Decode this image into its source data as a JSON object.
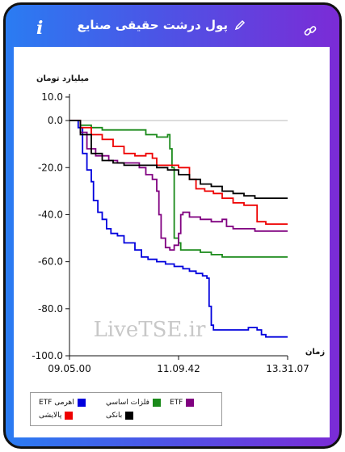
{
  "header": {
    "title": "پول درشت حقیقی صنایع",
    "info_label": "i",
    "colors": {
      "gradient_start": "#2a7cf2",
      "gradient_end": "#7b2bd6"
    }
  },
  "chart_data": {
    "type": "line",
    "ylabel": "میلیارد تومان",
    "xlabel": "زمان",
    "ylim": [
      -100,
      10
    ],
    "yticks": [
      "10.0",
      "0.0",
      "-20.0",
      "-40.0",
      "-60.0",
      "-80.0",
      "-100.0"
    ],
    "xticks": [
      "09.05.00",
      "11.09.42",
      "13.31.07"
    ],
    "watermark": "LiveTSE.ir",
    "series": [
      {
        "name": "اهرمی ETF",
        "color": "#0000dd",
        "points": [
          [
            0,
            0
          ],
          [
            4,
            -3
          ],
          [
            6,
            -14
          ],
          [
            8,
            -21
          ],
          [
            10,
            -26
          ],
          [
            11,
            -34
          ],
          [
            13,
            -39
          ],
          [
            15,
            -42
          ],
          [
            17,
            -46
          ],
          [
            19,
            -48
          ],
          [
            22,
            -49
          ],
          [
            25,
            -52
          ],
          [
            27,
            -52
          ],
          [
            30,
            -55
          ],
          [
            33,
            -58
          ],
          [
            36,
            -59
          ],
          [
            40,
            -60
          ],
          [
            44,
            -61
          ],
          [
            48,
            -62
          ],
          [
            52,
            -63
          ],
          [
            55,
            -64
          ],
          [
            58,
            -65
          ],
          [
            61,
            -66
          ],
          [
            63,
            -67
          ],
          [
            64,
            -79
          ],
          [
            65,
            -87
          ],
          [
            66,
            -89
          ],
          [
            74,
            -89
          ],
          [
            80,
            -89
          ],
          [
            82,
            -88
          ],
          [
            86,
            -89
          ],
          [
            88,
            -91
          ],
          [
            90,
            -92
          ],
          [
            100,
            -92
          ]
        ]
      },
      {
        "name": "فلزات اساسي",
        "color": "#1a8a1a",
        "points": [
          [
            0,
            0
          ],
          [
            5,
            -2
          ],
          [
            10,
            -3
          ],
          [
            15,
            -4
          ],
          [
            20,
            -4
          ],
          [
            25,
            -4
          ],
          [
            30,
            -4
          ],
          [
            35,
            -6
          ],
          [
            40,
            -7
          ],
          [
            44,
            -7
          ],
          [
            45,
            -6
          ],
          [
            46,
            -12
          ],
          [
            47,
            -20
          ],
          [
            48,
            -50
          ],
          [
            49,
            -50
          ],
          [
            50,
            -52
          ],
          [
            51,
            -55
          ],
          [
            55,
            -55
          ],
          [
            58,
            -55
          ],
          [
            60,
            -56
          ],
          [
            62,
            -56
          ],
          [
            65,
            -57
          ],
          [
            68,
            -57
          ],
          [
            70,
            -58
          ],
          [
            75,
            -58
          ],
          [
            85,
            -58
          ],
          [
            100,
            -58
          ]
        ]
      },
      {
        "name": "ETF",
        "color": "#800080",
        "points": [
          [
            0,
            0
          ],
          [
            5,
            -5
          ],
          [
            8,
            -12
          ],
          [
            12,
            -15
          ],
          [
            18,
            -17
          ],
          [
            22,
            -18
          ],
          [
            28,
            -18
          ],
          [
            32,
            -20
          ],
          [
            35,
            -23
          ],
          [
            38,
            -25
          ],
          [
            40,
            -30
          ],
          [
            41,
            -40
          ],
          [
            42,
            -50
          ],
          [
            44,
            -54
          ],
          [
            46,
            -55
          ],
          [
            48,
            -53
          ],
          [
            50,
            -48
          ],
          [
            51,
            -40
          ],
          [
            52,
            -39
          ],
          [
            55,
            -41
          ],
          [
            60,
            -42
          ],
          [
            65,
            -43
          ],
          [
            70,
            -42
          ],
          [
            72,
            -45
          ],
          [
            75,
            -46
          ],
          [
            80,
            -46
          ],
          [
            85,
            -47
          ],
          [
            90,
            -47
          ],
          [
            100,
            -47
          ]
        ]
      },
      {
        "name": "پالایشی",
        "color": "#ee0000",
        "points": [
          [
            0,
            0
          ],
          [
            5,
            -3
          ],
          [
            10,
            -6
          ],
          [
            15,
            -8
          ],
          [
            20,
            -11
          ],
          [
            25,
            -14
          ],
          [
            30,
            -15
          ],
          [
            35,
            -14
          ],
          [
            38,
            -16
          ],
          [
            40,
            -19
          ],
          [
            45,
            -19
          ],
          [
            50,
            -20
          ],
          [
            55,
            -25
          ],
          [
            58,
            -29
          ],
          [
            62,
            -30
          ],
          [
            66,
            -31
          ],
          [
            70,
            -33
          ],
          [
            75,
            -35
          ],
          [
            80,
            -36
          ],
          [
            85,
            -36
          ],
          [
            86,
            -43
          ],
          [
            90,
            -44
          ],
          [
            100,
            -44
          ]
        ]
      },
      {
        "name": "بانکی",
        "color": "#000000",
        "points": [
          [
            0,
            0
          ],
          [
            5,
            -6
          ],
          [
            10,
            -14
          ],
          [
            15,
            -17
          ],
          [
            20,
            -18
          ],
          [
            25,
            -19
          ],
          [
            30,
            -19
          ],
          [
            35,
            -19
          ],
          [
            40,
            -20
          ],
          [
            45,
            -21
          ],
          [
            50,
            -23
          ],
          [
            55,
            -25
          ],
          [
            60,
            -27
          ],
          [
            65,
            -28
          ],
          [
            70,
            -30
          ],
          [
            75,
            -31
          ],
          [
            80,
            -32
          ],
          [
            85,
            -33
          ],
          [
            90,
            -33
          ],
          [
            100,
            -33
          ]
        ]
      }
    ]
  }
}
